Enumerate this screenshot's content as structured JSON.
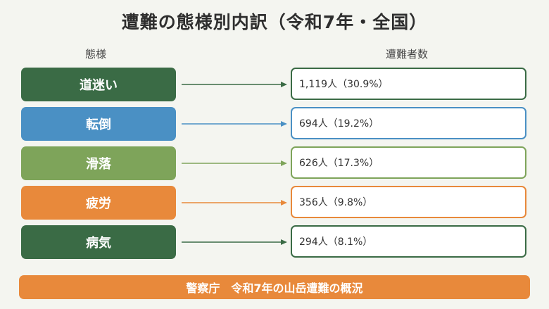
{
  "title": "遭難の態様別内訳（令和7年・全国）",
  "headers": {
    "left": "態様",
    "right": "遭難者数"
  },
  "rows": [
    {
      "category": "道迷い",
      "value_text": "1,119人（30.9%）",
      "count": 1119,
      "percent": 30.9,
      "color": "#3a6b45"
    },
    {
      "category": "転倒",
      "value_text": "694人（19.2%）",
      "count": 694,
      "percent": 19.2,
      "color": "#4a90c4"
    },
    {
      "category": "滑落",
      "value_text": "626人（17.3%）",
      "count": 626,
      "percent": 17.3,
      "color": "#7ea45a"
    },
    {
      "category": "疲労",
      "value_text": "356人（9.8%）",
      "count": 356,
      "percent": 9.8,
      "color": "#e8893b"
    },
    {
      "category": "病気",
      "value_text": "294人（8.1%）",
      "count": 294,
      "percent": 8.1,
      "color": "#3a6b45"
    }
  ],
  "source": "警察庁　令和7年の山岳遭難の概況",
  "colors": {
    "background": "#f4f5f0",
    "source_bg": "#e8893b"
  }
}
